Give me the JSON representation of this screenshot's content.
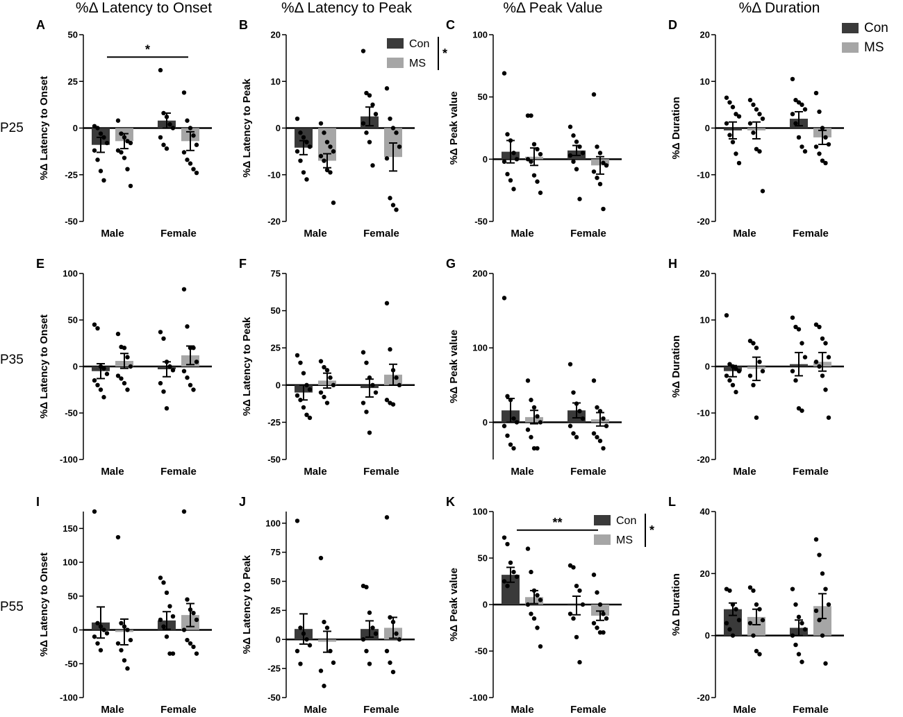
{
  "column_titles": [
    "%Δ Latency to Onset",
    "%Δ Latency to Peak",
    "%Δ Peak Value",
    "%Δ Duration"
  ],
  "row_labels": [
    "P25",
    "P35",
    "P55"
  ],
  "group_labels": [
    "Male",
    "Female"
  ],
  "legend": {
    "con": "Con",
    "ms": "MS",
    "con_color": "#3a3a3a",
    "ms_color": "#a6a6a6"
  },
  "colors": {
    "con_bar": "#3a3a3a",
    "ms_bar": "#a6a6a6",
    "dot": "#000000"
  },
  "chart_data": [
    {
      "id": "A",
      "type": "bar",
      "ylabel": "%Δ Latency to Onset",
      "ylim": [
        -50,
        50
      ],
      "yticks": [
        -50,
        -25,
        0,
        25,
        50
      ],
      "categories": [
        "Male",
        "Female"
      ],
      "series": [
        {
          "name": "Con",
          "means": [
            -9,
            4
          ],
          "sem": [
            4,
            4
          ],
          "points": [
            [
              1,
              0,
              -3,
              -5,
              -8,
              -12,
              -17,
              -23,
              -28
            ],
            [
              31,
              8,
              6,
              2,
              0,
              -5,
              -9,
              -11
            ]
          ]
        },
        {
          "name": "MS",
          "means": [
            -7,
            -7
          ],
          "sem": [
            4,
            5
          ],
          "points": [
            [
              4,
              -3,
              -5,
              -7,
              -8,
              -12,
              -13,
              -16,
              -22,
              -31
            ],
            [
              19,
              4,
              0,
              -4,
              -9,
              -13,
              -17,
              -19,
              -22,
              -24
            ]
          ]
        }
      ],
      "significance": {
        "label": "*",
        "type": "bracket",
        "y": 38
      }
    },
    {
      "id": "B",
      "type": "bar",
      "ylabel": "%Δ Latency to Peak",
      "ylim": [
        -20,
        20
      ],
      "yticks": [
        -20,
        -10,
        0,
        10,
        20
      ],
      "categories": [
        "Male",
        "Female"
      ],
      "series": [
        {
          "name": "Con",
          "means": [
            -4.2,
            2.5
          ],
          "sem": [
            1.5,
            2
          ],
          "points": [
            [
              2,
              -1,
              -2,
              -3,
              -4,
              -5,
              -7,
              -9.5,
              -11
            ],
            [
              16.5,
              7.5,
              7,
              5,
              3,
              1,
              -1,
              -3,
              -8
            ]
          ]
        },
        {
          "name": "MS",
          "means": [
            -7,
            -6.2
          ],
          "sem": [
            1.5,
            3
          ],
          "points": [
            [
              1,
              -1,
              -3,
              -4,
              -5,
              -6,
              -7,
              -9,
              -9.5,
              -16
            ],
            [
              8.5,
              2,
              0,
              -1,
              -4,
              -6.5,
              -15,
              -16.5,
              -17.5
            ]
          ]
        }
      ],
      "legend": {
        "show": true,
        "significance": "*"
      }
    },
    {
      "id": "C",
      "type": "bar",
      "ylabel": "%Δ Peak value",
      "ylim": [
        -50,
        100
      ],
      "yticks": [
        -50,
        0,
        50,
        100
      ],
      "categories": [
        "Male",
        "Female"
      ],
      "series": [
        {
          "name": "Con",
          "means": [
            6,
            7
          ],
          "sem": [
            9,
            4
          ],
          "points": [
            [
              69,
              20,
              15,
              5,
              0,
              -2,
              -12,
              -17,
              -24
            ],
            [
              26,
              19,
              14,
              10,
              5,
              3,
              -2,
              -8,
              -32
            ]
          ]
        },
        {
          "name": "MS",
          "means": [
            2,
            -5
          ],
          "sem": [
            7,
            7
          ],
          "points": [
            [
              35,
              35,
              12,
              8,
              4,
              0,
              -2,
              -13,
              -18,
              -27
            ],
            [
              52,
              10,
              5,
              -3,
              -5,
              -10,
              -15,
              -20,
              -40
            ]
          ]
        }
      ]
    },
    {
      "id": "D",
      "type": "bar",
      "ylabel": "%Δ Duration",
      "ylim": [
        -20,
        20
      ],
      "yticks": [
        -20,
        -10,
        0,
        10,
        20
      ],
      "categories": [
        "Male",
        "Female"
      ],
      "series": [
        {
          "name": "Con",
          "means": [
            -0.5,
            2
          ],
          "sem": [
            1.8,
            1.5
          ],
          "points": [
            [
              6.5,
              5.5,
              4.5,
              3,
              2.5,
              1,
              -1.5,
              -3,
              -5.5,
              -7.5
            ],
            [
              10.5,
              6,
              5.5,
              5,
              4,
              3,
              1,
              -2,
              -4,
              -5
            ]
          ]
        },
        {
          "name": "MS",
          "means": [
            -0.5,
            -2
          ],
          "sem": [
            1.8,
            1.5
          ],
          "points": [
            [
              6,
              5,
              4,
              3,
              2,
              1,
              -1,
              -4.5,
              -5,
              -13.5
            ],
            [
              7.5,
              3.5,
              0,
              -2,
              -3.5,
              -4,
              -5.5,
              -7,
              -7.5
            ]
          ]
        }
      ],
      "legend": {
        "show": true
      }
    },
    {
      "id": "E",
      "type": "bar",
      "ylabel": "%Δ Latency to Onset",
      "ylim": [
        -100,
        100
      ],
      "yticks": [
        -100,
        -50,
        0,
        50,
        100
      ],
      "categories": [
        "Male",
        "Female"
      ],
      "series": [
        {
          "name": "Con",
          "means": [
            -5,
            -3
          ],
          "sem": [
            8,
            8
          ],
          "points": [
            [
              45,
              41,
              0,
              -2,
              -8,
              -15,
              -20,
              -25,
              -33
            ],
            [
              37,
              30,
              5,
              0,
              -4,
              -18,
              -27,
              -45
            ]
          ]
        },
        {
          "name": "MS",
          "means": [
            6,
            12
          ],
          "sem": [
            8,
            10
          ],
          "points": [
            [
              35,
              21,
              20,
              10,
              0,
              -10,
              -13,
              -18,
              -25
            ],
            [
              83,
              43,
              20,
              20,
              5,
              -5,
              -12,
              -20,
              -25
            ]
          ]
        }
      ]
    },
    {
      "id": "F",
      "type": "bar",
      "ylabel": "%Δ Latency to Peak",
      "ylim": [
        -50,
        75
      ],
      "yticks": [
        -50,
        -25,
        0,
        25,
        50,
        75
      ],
      "categories": [
        "Male",
        "Female"
      ],
      "series": [
        {
          "name": "Con",
          "means": [
            -5,
            -2
          ],
          "sem": [
            5,
            6
          ],
          "points": [
            [
              20,
              15,
              8,
              0,
              -3,
              -7,
              -10,
              -15,
              -20,
              -22
            ],
            [
              22,
              15,
              5,
              0,
              -5,
              -12,
              -18,
              -32
            ]
          ]
        },
        {
          "name": "MS",
          "means": [
            3,
            7
          ],
          "sem": [
            5,
            7
          ],
          "points": [
            [
              16,
              12,
              10,
              5,
              0,
              -5,
              -8,
              -12
            ],
            [
              55,
              24,
              10,
              5,
              0,
              -10,
              -12,
              -13
            ]
          ]
        }
      ]
    },
    {
      "id": "G",
      "type": "bar",
      "ylabel": "%Δ Peak value",
      "ylim": [
        -50,
        200
      ],
      "yticks": [
        0,
        100,
        200
      ],
      "categories": [
        "Male",
        "Female"
      ],
      "series": [
        {
          "name": "Con",
          "means": [
            16,
            16
          ],
          "sem": [
            16,
            10
          ],
          "points": [
            [
              167,
              35,
              30,
              5,
              0,
              -5,
              -18,
              -30,
              -35
            ],
            [
              78,
              40,
              25,
              15,
              5,
              -5,
              -15,
              -20
            ]
          ]
        },
        {
          "name": "MS",
          "means": [
            7,
            4
          ],
          "sem": [
            9,
            9
          ],
          "points": [
            [
              56,
              30,
              20,
              8,
              0,
              -10,
              -20,
              -35,
              -35
            ],
            [
              56,
              20,
              15,
              5,
              -5,
              -15,
              -20,
              -25,
              -35
            ]
          ]
        }
      ]
    },
    {
      "id": "H",
      "type": "bar",
      "ylabel": "%Δ Duration",
      "ylim": [
        -20,
        20
      ],
      "yticks": [
        -20,
        -10,
        0,
        10,
        20
      ],
      "categories": [
        "Male",
        "Female"
      ],
      "series": [
        {
          "name": "Con",
          "means": [
            -1,
            0.5
          ],
          "sem": [
            1.2,
            2.5
          ],
          "points": [
            [
              11,
              0.5,
              0,
              -0.5,
              -1,
              -2,
              -3,
              -4,
              -5.5
            ],
            [
              10.5,
              8.5,
              8,
              5,
              2,
              -1,
              -3,
              -9,
              -9.5
            ]
          ]
        },
        {
          "name": "MS",
          "means": [
            -0.5,
            1
          ],
          "sem": [
            2.5,
            2
          ],
          " points_note": "",
          "points": [
            [
              5.5,
              5,
              4,
              1,
              -1,
              -2,
              -4,
              -11
            ],
            [
              9,
              8.5,
              6,
              5,
              2,
              1,
              0,
              -2,
              -5,
              -11
            ]
          ]
        }
      ]
    },
    {
      "id": "I",
      "type": "bar",
      "ylabel": "%Δ Latency to Onset",
      "ylim": [
        -100,
        175
      ],
      "yticks": [
        -100,
        -50,
        0,
        50,
        100,
        150
      ],
      "categories": [
        "Male",
        "Female"
      ],
      "series": [
        {
          "name": "Con",
          "means": [
            11,
            14
          ],
          "sem": [
            23,
            13
          ],
          "points": [
            [
              175,
              10,
              5,
              0,
              -5,
              -10,
              -20,
              -30
            ],
            [
              77,
              70,
              55,
              35,
              20,
              15,
              5,
              -10,
              -35,
              -35
            ]
          ]
        },
        {
          "name": "MS",
          "means": [
            -3,
            22
          ],
          "sem": [
            19,
            17
          ],
          "points": [
            [
              137,
              10,
              5,
              0,
              -15,
              -20,
              -30,
              -45,
              -57
            ],
            [
              175,
              45,
              30,
              25,
              15,
              0,
              -15,
              -20,
              -25,
              -35
            ]
          ]
        }
      ]
    },
    {
      "id": "J",
      "type": "bar",
      "ylabel": "%Δ Latency to Peak",
      "ylim": [
        -50,
        110
      ],
      "yticks": [
        -50,
        -25,
        0,
        25,
        50,
        75,
        100
      ],
      "categories": [
        "Male",
        "Female"
      ],
      "series": [
        {
          "name": "Con",
          "means": [
            9,
            9
          ],
          "sem": [
            13,
            7
          ],
          "points": [
            [
              102,
              10,
              5,
              0,
              -5,
              -10,
              -21
            ],
            [
              46,
              45,
              23,
              10,
              5,
              0,
              -10,
              -21
            ]
          ]
        },
        {
          "name": "MS",
          "means": [
            -2,
            10
          ],
          "sem": [
            9,
            9
          ],
          "points": [
            [
              70,
              15,
              10,
              -10,
              -20,
              -27,
              -40
            ],
            [
              105,
              19,
              15,
              5,
              0,
              -10,
              -20,
              -28
            ]
          ]
        }
      ]
    },
    {
      "id": "K",
      "type": "bar",
      "ylabel": "%Δ Peak value",
      "ylim": [
        -100,
        100
      ],
      "yticks": [
        -100,
        -50,
        0,
        50,
        100
      ],
      "categories": [
        "Male",
        "Female"
      ],
      "series": [
        {
          "name": "Con",
          "means": [
            32,
            -1
          ],
          "sem": [
            8,
            10
          ],
          "points": [
            [
              72,
              65,
              45,
              35,
              30,
              25,
              20
            ],
            [
              42,
              40,
              20,
              15,
              0,
              -10,
              -15,
              -35,
              -62
            ]
          ]
        },
        {
          "name": "MS",
          "means": [
            8,
            -12
          ],
          "sem": [
            7,
            5
          ],
          "points": [
            [
              60,
              35,
              15,
              10,
              5,
              0,
              -10,
              -15,
              -25,
              -45
            ],
            [
              32,
              13,
              0,
              -10,
              -15,
              -20,
              -25,
              -30,
              -30
            ]
          ]
        }
      ],
      "legend": {
        "show": true,
        "significance": "*"
      },
      "significance": {
        "label": "**",
        "type": "bracket",
        "y": 80
      }
    },
    {
      "id": "L",
      "type": "bar",
      "ylabel": "%Δ Duration",
      "ylim": [
        -20,
        40
      ],
      "yticks": [
        -20,
        0,
        20,
        40
      ],
      "categories": [
        "Male",
        "Female"
      ],
      "series": [
        {
          "name": "Con",
          "means": [
            8.5,
            2.5
          ],
          "sem": [
            2,
            2.5
          ],
          "points": [
            [
              15,
              14.5,
              10,
              8.5,
              5,
              4,
              2,
              0
            ],
            [
              15,
              10,
              6,
              4,
              2,
              0,
              -3,
              -6,
              -8.5
            ]
          ]
        },
        {
          "name": "MS",
          "means": [
            6,
            9.5
          ],
          "sem": [
            2.5,
            4
          ],
          "points": [
            [
              15.5,
              14.5,
              10,
              8.5,
              5,
              4,
              0,
              -5,
              -6
            ],
            [
              31,
              26,
              20,
              15,
              10,
              8,
              5,
              0,
              -9
            ]
          ]
        }
      ]
    }
  ]
}
